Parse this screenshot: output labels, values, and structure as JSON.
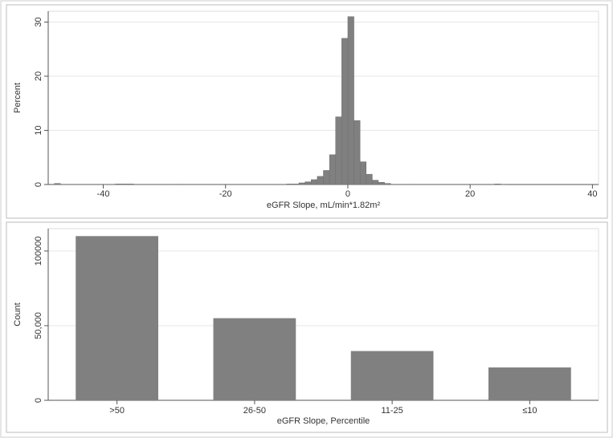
{
  "chart_data": [
    {
      "type": "histogram",
      "x_label": "eGFR Slope, mL/min*1.82m²",
      "y_label": "Percent",
      "bins": [
        -48,
        -47,
        -46,
        -45,
        -44,
        -43,
        -42,
        -41,
        -40,
        -39,
        -38,
        -37,
        -36,
        -35,
        -34,
        -33,
        -32,
        -31,
        -30,
        -29,
        -28,
        -27,
        -26,
        -25,
        -24,
        -23,
        -22,
        -21,
        -20,
        -19,
        -18,
        -17,
        -16,
        -15,
        -14,
        -13,
        -12,
        -11,
        -10,
        -9,
        -8,
        -7,
        -6,
        -5,
        -4,
        -3,
        -2,
        -1,
        0,
        1,
        2,
        3,
        4,
        5,
        6,
        7,
        8,
        9,
        10,
        11,
        12,
        13,
        14,
        15,
        16,
        17,
        18,
        19,
        20,
        21,
        22,
        23,
        24,
        25,
        26
      ],
      "counts": [
        0.2,
        0.05,
        0.05,
        0.05,
        0.05,
        0.05,
        0.05,
        0.05,
        0.05,
        0.05,
        0.1,
        0.1,
        0.1,
        0.05,
        0.05,
        0.05,
        0.05,
        0.05,
        0.05,
        0.05,
        0.05,
        0.05,
        0.05,
        0.05,
        0.05,
        0.05,
        0.05,
        0.05,
        0.05,
        0.05,
        0.05,
        0.05,
        0.05,
        0.05,
        0.05,
        0.05,
        0.05,
        0.05,
        0.1,
        0.1,
        0.3,
        0.5,
        0.9,
        1.5,
        2.6,
        5.5,
        12.5,
        27,
        31,
        11.8,
        4.2,
        1.9,
        0.8,
        0.4,
        0.2,
        0.05,
        0.05,
        0.05,
        0.05,
        0.05,
        0.05,
        0.05,
        0.05,
        0.05,
        0.05,
        0.05,
        0.05,
        0.05,
        0.05,
        0.05,
        0.05,
        0.05,
        0.1,
        0.05
      ],
      "color": "#808080",
      "xlim": [
        -49,
        41
      ],
      "xticks": [
        -40,
        -20,
        0,
        20,
        40
      ],
      "ylim": [
        0,
        32
      ],
      "yticks": [
        0,
        10,
        20,
        30
      ],
      "grid": true
    },
    {
      "type": "bar",
      "x_label": "eGFR Slope, Percentile",
      "y_label": "Count",
      "categories": [
        ">50",
        "26-50",
        "11-25",
        "≤10"
      ],
      "values": [
        110000,
        55000,
        33000,
        22000
      ],
      "color": "#808080",
      "ylim": [
        0,
        115000
      ],
      "yticks": [
        0,
        {
          "value": 50000,
          "label": "50,000"
        },
        100000
      ],
      "grid": true
    }
  ]
}
